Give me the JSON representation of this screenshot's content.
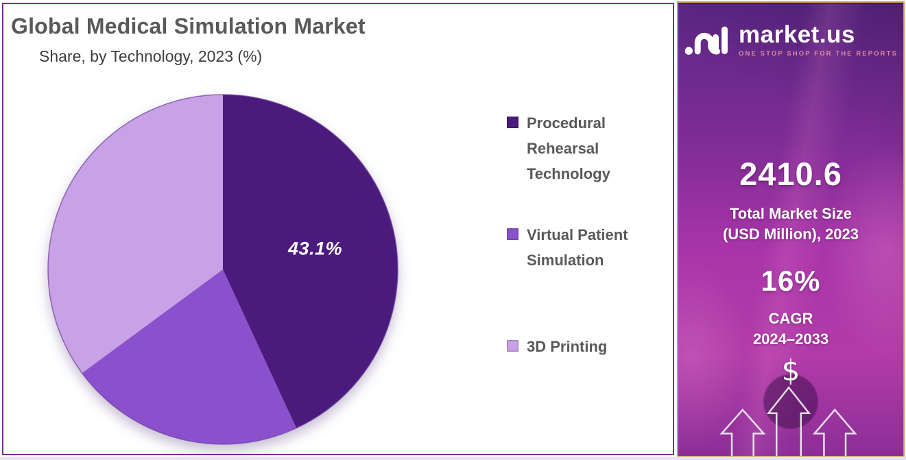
{
  "page": {
    "title": "Global Medical Simulation Market",
    "subtitle": "Share, by Technology, 2023 (%)"
  },
  "chart_data": {
    "type": "pie",
    "title": "Global Medical Simulation Market",
    "subtitle": "Share, by Technology, 2023 (%)",
    "unit": "%",
    "categories": [
      "Procedural Rehearsal Technology",
      "Virtual Patient Simulation",
      "3D Printing"
    ],
    "values": [
      43.1,
      21.8,
      35.1
    ],
    "colors": [
      "#4a1a7d",
      "#8b51cd",
      "#c8a1e6"
    ],
    "start_angle_deg": 0,
    "direction": "clockwise",
    "legend_position": "right",
    "data_label": {
      "text": "43.1%",
      "slice": "Procedural Rehearsal Technology"
    }
  },
  "legend": {
    "items": [
      {
        "label": "Procedural Rehearsal Technology",
        "color": "#4a1a7d"
      },
      {
        "label": "Virtual Patient Simulation",
        "color": "#8b51cd"
      },
      {
        "label": "3D Printing",
        "color": "#c8a1e6"
      }
    ]
  },
  "sidebar": {
    "brand": "market.us",
    "tagline": "ONE STOP SHOP FOR THE REPORTS",
    "market_size_value": "2410.6",
    "market_size_label": "Total Market Size\n(USD Million), 2023",
    "cagr_value": "16%",
    "cagr_label": "CAGR\n2024–2033",
    "dollar_symbol": "$",
    "accent_border_color": "#cf9c42",
    "panel_border_color": "#7b2d8f"
  }
}
